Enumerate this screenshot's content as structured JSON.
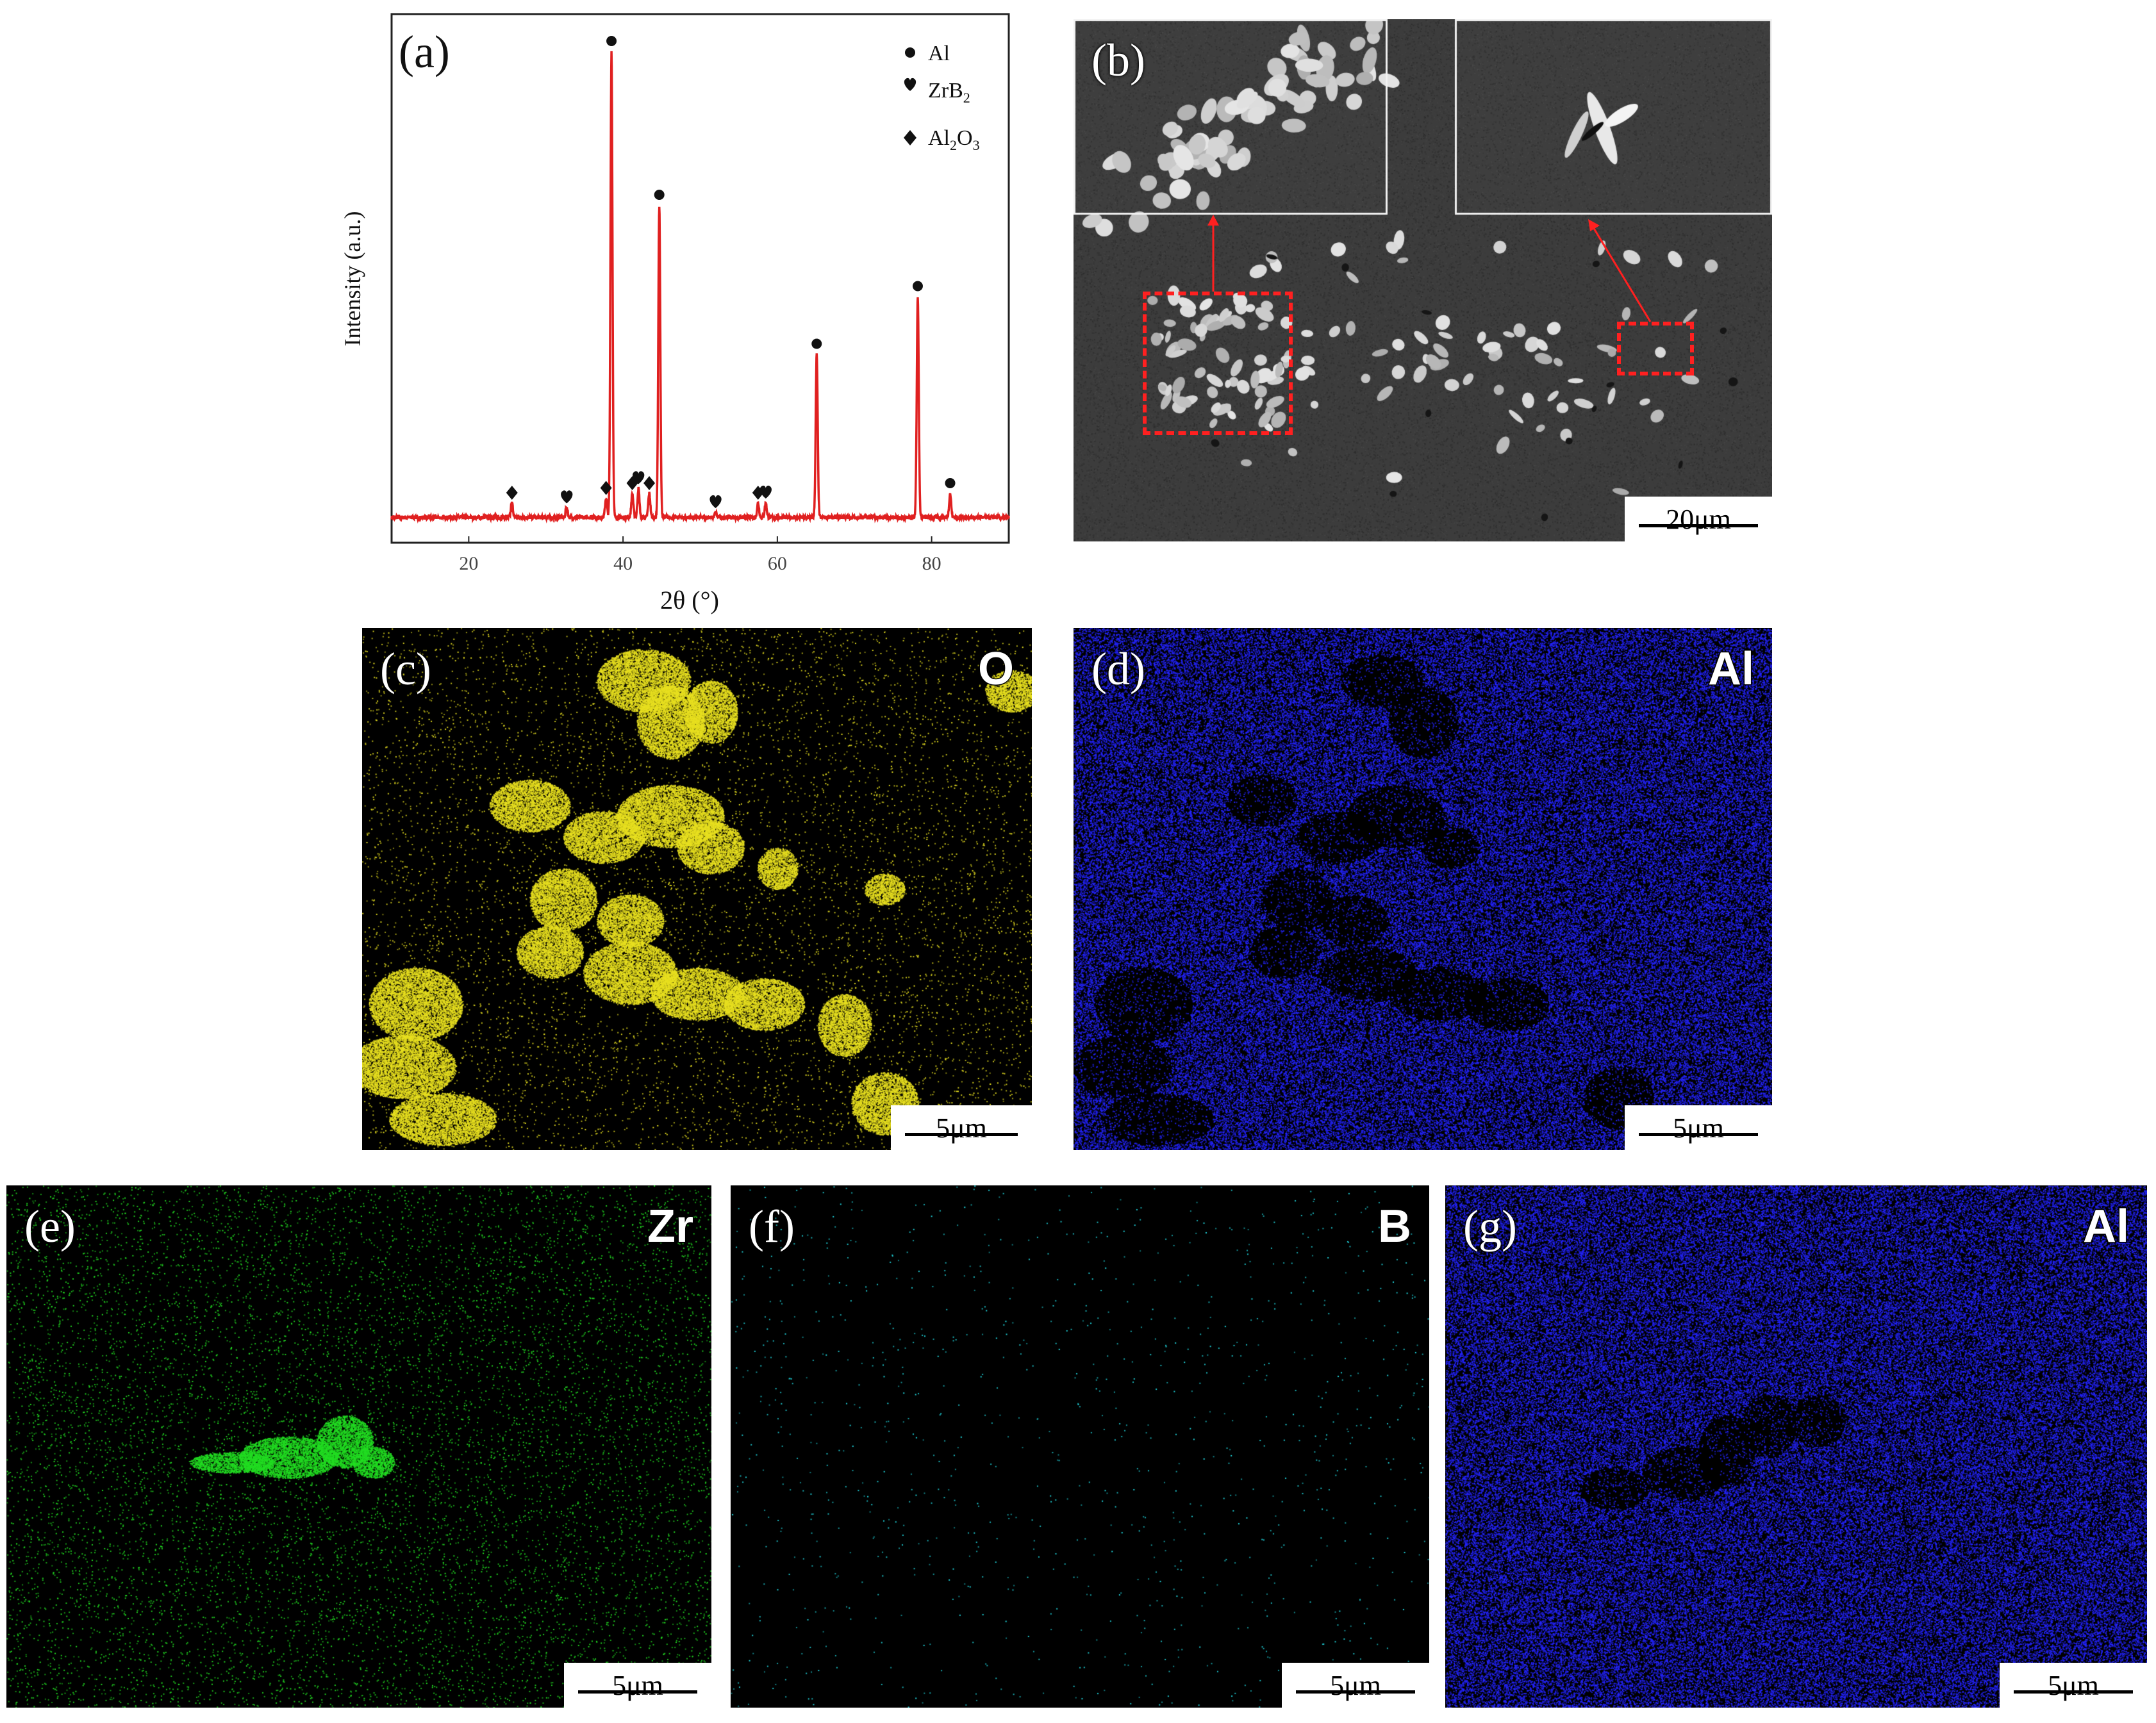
{
  "panel_a": {
    "label": "(a)",
    "ylabel": "Intensity (a.u.)",
    "xlabel": "2θ (°)",
    "xticks": [
      "20",
      "40",
      "60",
      "80"
    ],
    "legend": [
      {
        "marker": "circle",
        "text": "Al"
      },
      {
        "marker": "heart",
        "text": "ZrB",
        "sub": "2"
      },
      {
        "marker": "diamond",
        "text": "Al",
        "sub": "2",
        "text2": "O",
        "sub2": "3"
      }
    ]
  },
  "panel_b": {
    "label": "(b)",
    "scale": "20μm"
  },
  "panel_c": {
    "label": "(c)",
    "element": "O",
    "scale": "5μm",
    "color": "#e8e020"
  },
  "panel_d": {
    "label": "(d)",
    "element": "Al",
    "scale": "5μm",
    "color": "#2424ff"
  },
  "panel_e": {
    "label": "(e)",
    "element": "Zr",
    "scale": "5μm",
    "color": "#22dd22"
  },
  "panel_f": {
    "label": "(f)",
    "element": "B",
    "scale": "5μm",
    "color": "#20d8e0"
  },
  "panel_g": {
    "label": "(g)",
    "element": "Al",
    "scale": "5μm",
    "color": "#2424ff"
  },
  "chart_data": {
    "type": "line",
    "x_range": [
      10,
      90
    ],
    "series_color": "#e02020",
    "baseline": 3,
    "peaks": [
      {
        "x": 25.6,
        "y": 6,
        "phase": "Al2O3"
      },
      {
        "x": 32.7,
        "y": 5,
        "phase": "ZrB2"
      },
      {
        "x": 37.8,
        "y": 7,
        "phase": "Al2O3"
      },
      {
        "x": 38.5,
        "y": 100,
        "phase": "Al"
      },
      {
        "x": 41.2,
        "y": 8,
        "phase": "Al2O3"
      },
      {
        "x": 42.0,
        "y": 9,
        "phase": "ZrB2"
      },
      {
        "x": 43.4,
        "y": 8,
        "phase": "Al2O3"
      },
      {
        "x": 44.7,
        "y": 68,
        "phase": "Al"
      },
      {
        "x": 52.0,
        "y": 4,
        "phase": "ZrB2"
      },
      {
        "x": 57.5,
        "y": 6,
        "phase": "Al2O3"
      },
      {
        "x": 58.5,
        "y": 6,
        "phase": "ZrB2"
      },
      {
        "x": 65.1,
        "y": 37,
        "phase": "Al"
      },
      {
        "x": 78.2,
        "y": 49,
        "phase": "Al"
      },
      {
        "x": 82.4,
        "y": 8,
        "phase": "Al"
      }
    ]
  }
}
